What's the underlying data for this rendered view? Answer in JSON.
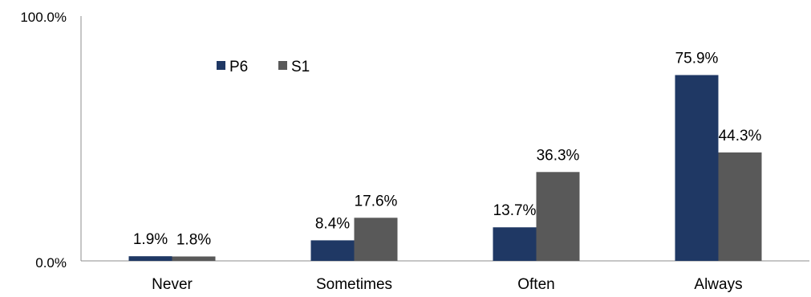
{
  "chart_data": {
    "type": "bar",
    "categories": [
      "Never",
      "Sometimes",
      "Often",
      "Always"
    ],
    "series": [
      {
        "name": "P6",
        "values": [
          1.9,
          8.4,
          13.7,
          75.9
        ],
        "labels": [
          "1.9%",
          "8.4%",
          "13.7%",
          "75.9%"
        ],
        "color": "#1f3864"
      },
      {
        "name": "S1",
        "values": [
          1.8,
          17.6,
          36.3,
          44.3
        ],
        "labels": [
          "1.8%",
          "17.6%",
          "36.3%",
          "44.3%"
        ],
        "color": "#595959"
      }
    ],
    "ylim": [
      0,
      100
    ],
    "yticks": [
      "0.0%",
      "100.0%"
    ],
    "grid": false,
    "legend_position": "top-left inside plot",
    "title": "",
    "xlabel": "",
    "ylabel": ""
  }
}
